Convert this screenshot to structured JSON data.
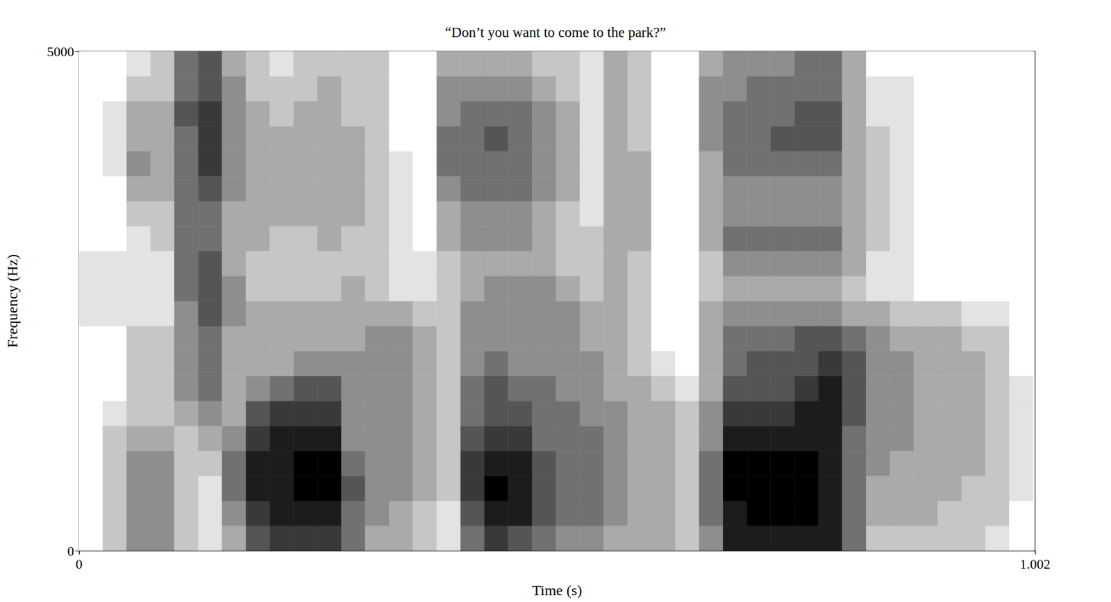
{
  "chart_data": {
    "type": "spectrogram",
    "title": "“Don’t you want to come to the park?”",
    "x_label": "Time (s)",
    "y_label": "Frequency (Hz)",
    "xlim": [
      0,
      1.002
    ],
    "xticks": [
      0,
      1.002
    ],
    "ylim": [
      0,
      5000
    ],
    "yticks": [
      0,
      5000
    ],
    "grid": false,
    "color": "#000000",
    "time_bins": [
      0,
      0.025,
      0.05,
      0.075,
      0.1,
      0.125,
      0.15,
      0.175,
      0.2,
      0.225,
      0.25,
      0.275,
      0.3,
      0.325,
      0.35,
      0.375,
      0.4,
      0.425,
      0.45,
      0.475,
      0.5,
      0.525,
      0.55,
      0.575,
      0.6,
      0.625,
      0.65,
      0.675,
      0.7,
      0.725,
      0.75,
      0.775,
      0.8,
      0.825,
      0.85,
      0.875,
      0.9,
      0.925,
      0.95,
      0.975,
      1.0
    ],
    "frequency_bins": [
      0,
      250,
      500,
      750,
      1000,
      1250,
      1500,
      1750,
      2000,
      2250,
      2500,
      2750,
      3000,
      3250,
      3500,
      3750,
      4000,
      4250,
      4500,
      4750,
      5000
    ],
    "intensity_range": [
      0,
      9
    ],
    "intensity": [
      [
        0,
        0,
        0,
        0,
        0,
        0,
        0,
        0,
        0,
        1,
        1,
        1,
        0,
        0,
        0,
        0,
        0,
        0,
        0,
        0
      ],
      [
        2,
        2,
        2,
        2,
        2,
        1,
        0,
        0,
        0,
        1,
        1,
        1,
        0,
        0,
        0,
        1,
        1,
        1,
        0,
        0
      ],
      [
        4,
        4,
        4,
        4,
        3,
        2,
        2,
        2,
        2,
        1,
        1,
        1,
        1,
        2,
        3,
        4,
        3,
        3,
        2,
        1
      ],
      [
        4,
        4,
        4,
        4,
        3,
        2,
        2,
        2,
        2,
        1,
        1,
        1,
        2,
        2,
        3,
        3,
        3,
        3,
        2,
        2
      ],
      [
        2,
        2,
        2,
        2,
        2,
        3,
        4,
        4,
        4,
        4,
        5,
        5,
        5,
        5,
        5,
        5,
        5,
        6,
        5,
        5
      ],
      [
        1,
        1,
        1,
        2,
        3,
        4,
        5,
        5,
        5,
        6,
        6,
        6,
        5,
        5,
        6,
        7,
        7,
        7,
        6,
        6
      ],
      [
        3,
        4,
        5,
        5,
        4,
        3,
        3,
        3,
        3,
        4,
        4,
        3,
        3,
        3,
        4,
        4,
        4,
        4,
        4,
        3
      ],
      [
        6,
        7,
        8,
        8,
        7,
        6,
        4,
        3,
        3,
        3,
        2,
        2,
        3,
        3,
        3,
        3,
        3,
        3,
        2,
        2
      ],
      [
        7,
        8,
        8,
        8,
        8,
        7,
        5,
        3,
        3,
        3,
        2,
        2,
        2,
        3,
        3,
        3,
        3,
        2,
        2,
        1
      ],
      [
        7,
        8,
        9,
        9,
        8,
        7,
        6,
        4,
        3,
        3,
        2,
        2,
        2,
        3,
        3,
        3,
        3,
        3,
        2,
        2
      ],
      [
        7,
        8,
        9,
        9,
        8,
        7,
        6,
        4,
        3,
        3,
        2,
        2,
        3,
        3,
        3,
        3,
        3,
        3,
        3,
        2
      ],
      [
        5,
        5,
        6,
        5,
        4,
        4,
        4,
        4,
        3,
        3,
        3,
        2,
        2,
        3,
        3,
        3,
        3,
        2,
        2,
        2
      ],
      [
        3,
        4,
        4,
        4,
        4,
        4,
        4,
        4,
        4,
        3,
        2,
        2,
        2,
        2,
        2,
        2,
        2,
        2,
        2,
        2
      ],
      [
        3,
        3,
        4,
        4,
        4,
        4,
        4,
        4,
        4,
        3,
        1,
        1,
        1,
        1,
        1,
        1,
        0,
        0,
        0,
        0
      ],
      [
        2,
        2,
        3,
        3,
        3,
        3,
        3,
        3,
        3,
        2,
        1,
        1,
        0,
        0,
        0,
        0,
        0,
        0,
        0,
        0
      ],
      [
        1,
        1,
        2,
        2,
        2,
        2,
        2,
        2,
        2,
        2,
        2,
        2,
        3,
        3,
        4,
        5,
        5,
        4,
        4,
        3
      ],
      [
        5,
        6,
        7,
        7,
        6,
        5,
        5,
        4,
        4,
        4,
        3,
        3,
        4,
        4,
        5,
        5,
        5,
        5,
        4,
        3
      ],
      [
        7,
        8,
        9,
        8,
        7,
        6,
        6,
        5,
        4,
        4,
        4,
        3,
        4,
        4,
        5,
        5,
        6,
        5,
        4,
        3
      ],
      [
        6,
        8,
        8,
        8,
        7,
        6,
        5,
        4,
        4,
        4,
        4,
        3,
        4,
        4,
        5,
        5,
        5,
        5,
        4,
        3
      ],
      [
        5,
        6,
        6,
        6,
        5,
        5,
        5,
        4,
        4,
        4,
        4,
        3,
        3,
        3,
        4,
        4,
        4,
        4,
        3,
        2
      ],
      [
        4,
        5,
        5,
        5,
        5,
        5,
        4,
        4,
        4,
        4,
        3,
        2,
        2,
        2,
        3,
        3,
        3,
        3,
        2,
        2
      ],
      [
        4,
        5,
        5,
        5,
        5,
        4,
        4,
        4,
        3,
        3,
        2,
        2,
        2,
        1,
        1,
        1,
        1,
        1,
        1,
        1
      ],
      [
        3,
        4,
        4,
        4,
        4,
        4,
        3,
        3,
        3,
        3,
        3,
        3,
        3,
        3,
        3,
        3,
        3,
        3,
        3,
        3
      ],
      [
        3,
        3,
        3,
        3,
        3,
        3,
        3,
        2,
        2,
        2,
        2,
        2,
        3,
        3,
        3,
        3,
        2,
        2,
        2,
        2
      ],
      [
        3,
        3,
        3,
        3,
        3,
        3,
        2,
        1,
        0,
        0,
        0,
        0,
        0,
        0,
        0,
        0,
        0,
        0,
        0,
        0
      ],
      [
        2,
        2,
        2,
        2,
        2,
        2,
        1,
        0,
        0,
        0,
        0,
        0,
        0,
        0,
        0,
        0,
        0,
        0,
        0,
        0
      ],
      [
        4,
        5,
        5,
        5,
        4,
        4,
        3,
        3,
        3,
        3,
        2,
        2,
        3,
        3,
        3,
        3,
        4,
        4,
        4,
        3
      ],
      [
        8,
        8,
        9,
        9,
        8,
        7,
        6,
        5,
        5,
        4,
        3,
        4,
        5,
        4,
        4,
        5,
        5,
        5,
        4,
        4
      ],
      [
        8,
        9,
        9,
        9,
        8,
        7,
        6,
        6,
        5,
        4,
        3,
        4,
        5,
        4,
        4,
        5,
        5,
        5,
        5,
        4
      ],
      [
        8,
        9,
        9,
        9,
        8,
        7,
        6,
        6,
        5,
        4,
        3,
        4,
        5,
        4,
        4,
        5,
        6,
        5,
        5,
        4
      ],
      [
        8,
        9,
        9,
        9,
        8,
        8,
        7,
        6,
        6,
        4,
        3,
        4,
        5,
        4,
        4,
        5,
        6,
        6,
        5,
        5
      ],
      [
        8,
        8,
        8,
        8,
        8,
        8,
        8,
        7,
        6,
        4,
        3,
        4,
        5,
        4,
        4,
        5,
        6,
        6,
        5,
        5
      ],
      [
        5,
        5,
        5,
        5,
        5,
        6,
        6,
        6,
        5,
        3,
        2,
        3,
        3,
        3,
        3,
        3,
        3,
        3,
        3,
        3
      ],
      [
        2,
        3,
        3,
        4,
        4,
        4,
        4,
        4,
        4,
        3,
        1,
        1,
        2,
        2,
        2,
        2,
        2,
        1,
        1,
        0
      ],
      [
        2,
        3,
        3,
        3,
        4,
        4,
        4,
        4,
        3,
        2,
        1,
        1,
        1,
        1,
        1,
        1,
        1,
        1,
        1,
        0
      ],
      [
        2,
        3,
        3,
        3,
        3,
        3,
        3,
        3,
        3,
        2,
        0,
        0,
        0,
        0,
        0,
        0,
        0,
        0,
        0,
        0
      ],
      [
        2,
        2,
        3,
        3,
        3,
        3,
        3,
        3,
        3,
        2,
        0,
        0,
        0,
        0,
        0,
        0,
        0,
        0,
        0,
        0
      ],
      [
        2,
        2,
        2,
        3,
        3,
        3,
        3,
        3,
        2,
        1,
        0,
        0,
        0,
        0,
        0,
        0,
        0,
        0,
        0,
        0
      ],
      [
        1,
        2,
        2,
        2,
        2,
        2,
        2,
        2,
        2,
        1,
        0,
        0,
        0,
        0,
        0,
        0,
        0,
        0,
        0,
        0
      ],
      [
        0,
        0,
        1,
        1,
        1,
        1,
        1,
        0,
        0,
        0,
        0,
        0,
        0,
        0,
        0,
        0,
        0,
        0,
        0,
        0
      ]
    ]
  }
}
